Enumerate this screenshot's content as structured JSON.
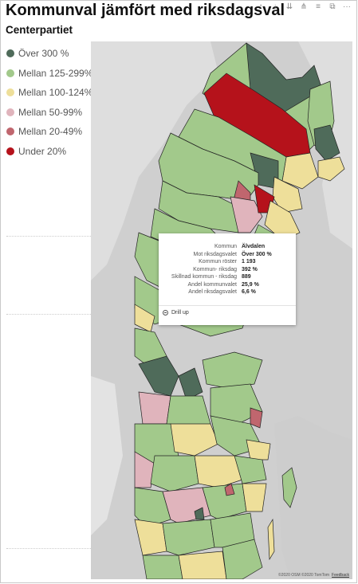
{
  "title": "Kommunval jämfört med riksdagsval",
  "subtitle": "Centerpartiet",
  "toolbar_icons": [
    "pin-icon",
    "drill-down-icon",
    "expand-icon",
    "drill-icon",
    "filter-icon",
    "focus-icon",
    "more-icon"
  ],
  "legend": [
    {
      "label": "Över 300 %",
      "color": "#4f6b5a"
    },
    {
      "label": "Mellan 125-299%",
      "color": "#a2c98b"
    },
    {
      "label": "Mellan 100-124%",
      "color": "#eedf9a"
    },
    {
      "label": "Mellan 50-99%",
      "color": "#e0b4bc"
    },
    {
      "label": "Mellan 20-49%",
      "color": "#c0666e"
    },
    {
      "label": "Under 20%",
      "color": "#b5121b"
    }
  ],
  "tooltip": {
    "rows": [
      {
        "label": "Kommun",
        "value": "Älvdalen"
      },
      {
        "label": "Mot riksdagsvalet",
        "value": "Över 300 %"
      },
      {
        "label": "Kommun röster",
        "value": "1 193"
      },
      {
        "label": "Kommun- riksdag",
        "value": "392 %"
      },
      {
        "label": "Skillnad kommun - riksdag",
        "value": "889"
      },
      {
        "label": "Andel kommunvalet",
        "value": "25,9 %"
      },
      {
        "label": "Andel riksdagsvalet",
        "value": "6,6 %"
      }
    ],
    "drill_label": "Drill up"
  },
  "map": {
    "attribution": "©2020 OSM ©2020 TomTom",
    "feedback": "Feedback"
  }
}
